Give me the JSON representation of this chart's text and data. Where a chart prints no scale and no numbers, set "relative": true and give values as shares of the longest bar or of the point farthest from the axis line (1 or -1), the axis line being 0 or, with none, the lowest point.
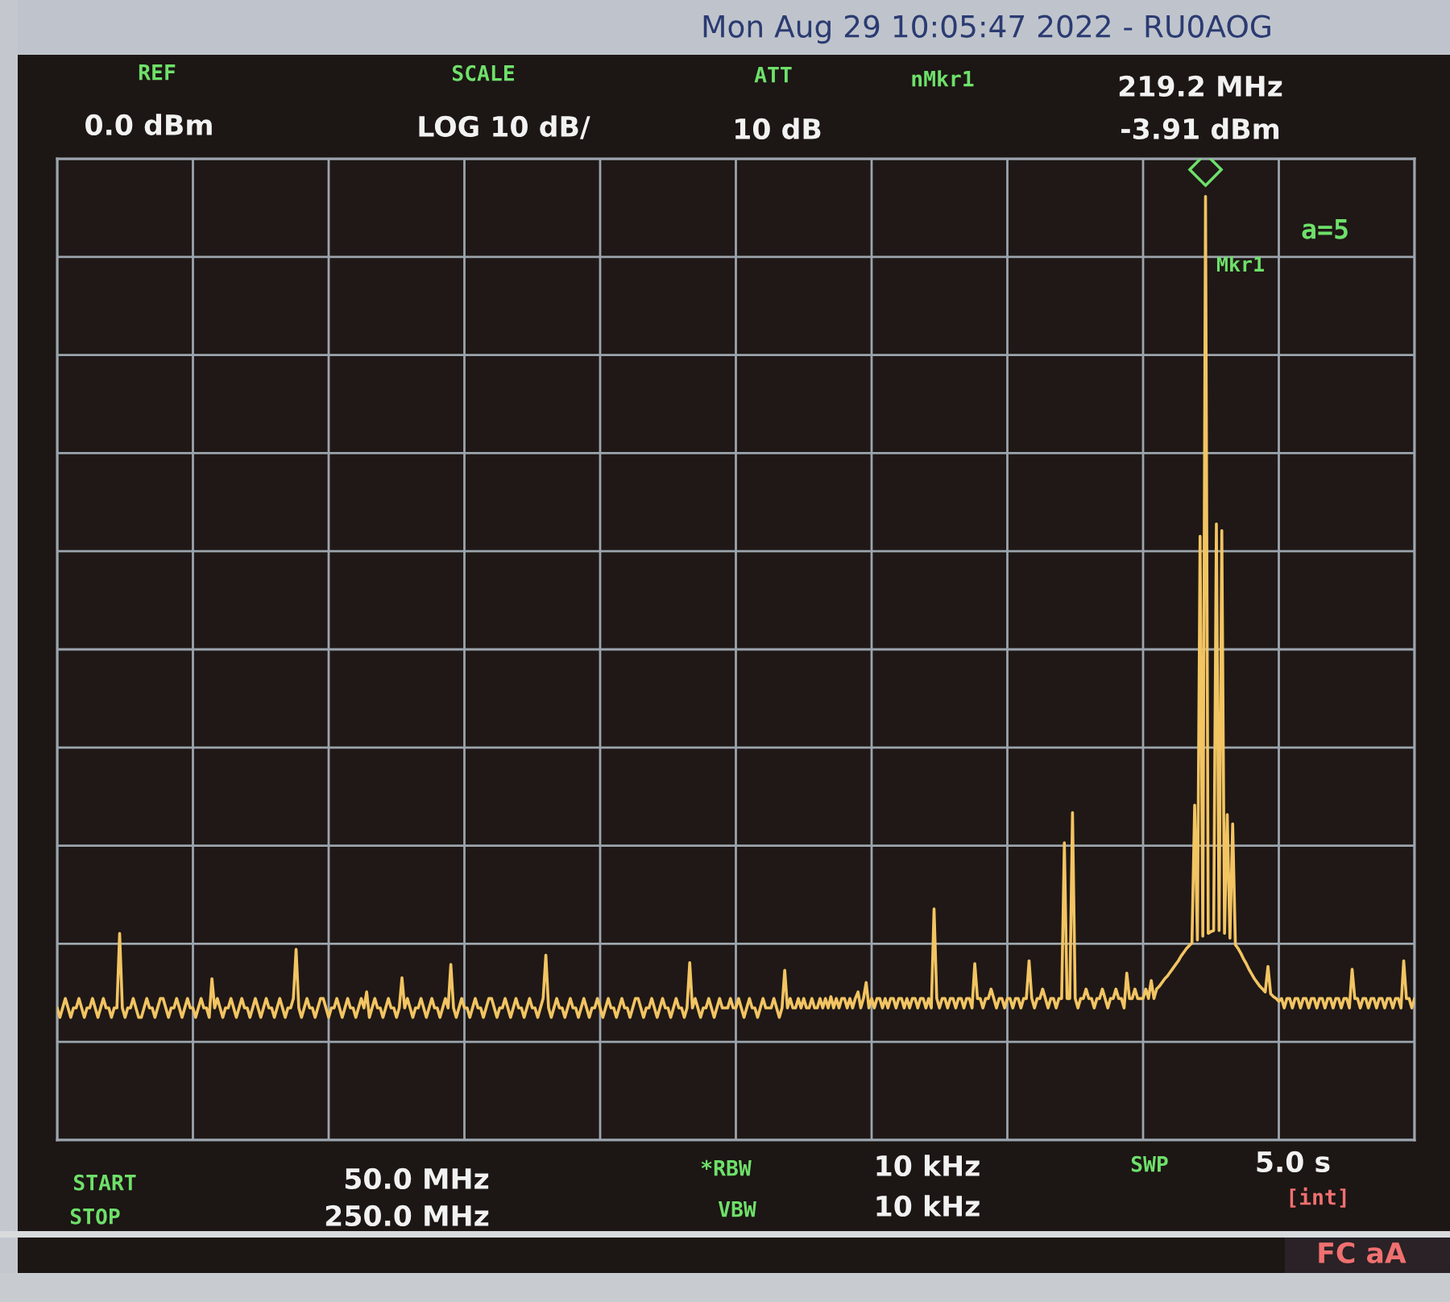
{
  "chart_data": {
    "type": "line",
    "title": "Mon Aug 29 10:05:47 2022 - RU0AOG",
    "relative": true,
    "categories": [
      null,
      null,
      null,
      null,
      null,
      null,
      null,
      null,
      null,
      null,
      null,
      null,
      null,
      null,
      null,
      null,
      null,
      null,
      null,
      null,
      null,
      null,
      null,
      null,
      null,
      null,
      null,
      null,
      null,
      null,
      null,
      null,
      null,
      null,
      null,
      null,
      null,
      null,
      null,
      null,
      null,
      null,
      null,
      null,
      null,
      null,
      null,
      null,
      null,
      null,
      null,
      null,
      null,
      null,
      null,
      null,
      null,
      null,
      null,
      null,
      null,
      null,
      null,
      null,
      null,
      null,
      null,
      null,
      null,
      null,
      null,
      null,
      null,
      null,
      null,
      null,
      null,
      null,
      null,
      null,
      null,
      null,
      null,
      null,
      null,
      null,
      null,
      null,
      null,
      null,
      null,
      null,
      null,
      null,
      null,
      null,
      null,
      null,
      null,
      null,
      null,
      null,
      null,
      null,
      null,
      null,
      null,
      null,
      null,
      null,
      null,
      null,
      null,
      null,
      null,
      null,
      null,
      null,
      null,
      null,
      null,
      null,
      null,
      null,
      null,
      null,
      null,
      null,
      null,
      null,
      null,
      null,
      null,
      null,
      null,
      null,
      null,
      null,
      null,
      null,
      null,
      null,
      null,
      null,
      null,
      null,
      null,
      null,
      null,
      null,
      null,
      null,
      null,
      null,
      null,
      null,
      null,
      null,
      null,
      null,
      null,
      null,
      null,
      null,
      null,
      null,
      null,
      null,
      null,
      null,
      null,
      null,
      null,
      null,
      null,
      null,
      null,
      null,
      null,
      null,
      null,
      null,
      null,
      null,
      null,
      null,
      null,
      null,
      null,
      null,
      null,
      null,
      null,
      null,
      null,
      null,
      null,
      null,
      null,
      null,
      null,
      null,
      null,
      null,
      null,
      null,
      null,
      null,
      null,
      null,
      null,
      null,
      null,
      null,
      null,
      null,
      null,
      null,
      null,
      null,
      null,
      null,
      null,
      null,
      null,
      null,
      null,
      null,
      null,
      null,
      null,
      null,
      null,
      null,
      null,
      null,
      null,
      null,
      null,
      null,
      null,
      null,
      null,
      null,
      null,
      null,
      null,
      null,
      null,
      null,
      null,
      null,
      null,
      null,
      null,
      null,
      null,
      null,
      null,
      null,
      null,
      null,
      null,
      null,
      null,
      null,
      null,
      null,
      null,
      null,
      null,
      null,
      null,
      null,
      null,
      null,
      null,
      null,
      null,
      null,
      null,
      null,
      null,
      null,
      null,
      null,
      null,
      null,
      null,
      null,
      null,
      null,
      null,
      null,
      null,
      null,
      null,
      null,
      null,
      null,
      null,
      null,
      null,
      null,
      null,
      null,
      null,
      null,
      null,
      null,
      null,
      null,
      null,
      null,
      null,
      null,
      null,
      null,
      null,
      null,
      null,
      null,
      null,
      null,
      null,
      null,
      null,
      null,
      null,
      null,
      null,
      null,
      null,
      null,
      null,
      null,
      null,
      null,
      null,
      null,
      null,
      null,
      null,
      null,
      null,
      null,
      null,
      null,
      null,
      null,
      null,
      null,
      null,
      null,
      null,
      null,
      null,
      null,
      null,
      null,
      null,
      null,
      null,
      null,
      null,
      null,
      null,
      null,
      null,
      null,
      null,
      null,
      null,
      null,
      null,
      null,
      null,
      null,
      null,
      null,
      null,
      null,
      null,
      null,
      null,
      null,
      null,
      null,
      null,
      null,
      null,
      null,
      null,
      null,
      null,
      null,
      null,
      null,
      null,
      null,
      null,
      null,
      null,
      null,
      null,
      null,
      null,
      null,
      null,
      null,
      null,
      null,
      null,
      null,
      null,
      null,
      null,
      null,
      null,
      null,
      null,
      null,
      null,
      null,
      null,
      null,
      null,
      null,
      null,
      null,
      null,
      null,
      null,
      null,
      null,
      null,
      null,
      null,
      null,
      null,
      null,
      null,
      null,
      null,
      null,
      null,
      null,
      null,
      null,
      null,
      null,
      null,
      null,
      null,
      null,
      null,
      null,
      null,
      null,
      null,
      null,
      null,
      null,
      null,
      null,
      null,
      null,
      null,
      null,
      null,
      null,
      null,
      null,
      null,
      null,
      null,
      null,
      null,
      null,
      null,
      null,
      null,
      null,
      null,
      null,
      null,
      null,
      null,
      null,
      null,
      null,
      null,
      null,
      null,
      null,
      null,
      null,
      null,
      null,
      null,
      null
    ],
    "series": [
      {
        "color": "#f2c462",
        "values": [
          0.14,
          0.13,
          0.14,
          0.15,
          0.14,
          0.13,
          0.14,
          0.14,
          0.15,
          0.14,
          0.13,
          0.14,
          0.14,
          0.15,
          0.14,
          0.13,
          0.14,
          0.15,
          0.14,
          0.14,
          0.13,
          0.14,
          0.14,
          0.219,
          0.14,
          0.13,
          0.14,
          0.14,
          0.15,
          0.14,
          0.13,
          0.13,
          0.14,
          0.15,
          0.14,
          0.14,
          0.13,
          0.14,
          0.15,
          0.15,
          0.14,
          0.13,
          0.14,
          0.14,
          0.15,
          0.14,
          0.13,
          0.14,
          0.15,
          0.14,
          0.14,
          0.13,
          0.14,
          0.15,
          0.14,
          0.14,
          0.13,
          0.171,
          0.14,
          0.15,
          0.14,
          0.13,
          0.14,
          0.14,
          0.15,
          0.14,
          0.13,
          0.14,
          0.15,
          0.14,
          0.14,
          0.13,
          0.14,
          0.15,
          0.14,
          0.13,
          0.14,
          0.15,
          0.14,
          0.14,
          0.13,
          0.14,
          0.15,
          0.14,
          0.13,
          0.14,
          0.14,
          0.15,
          0.202,
          0.14,
          0.13,
          0.14,
          0.15,
          0.14,
          0.14,
          0.13,
          0.14,
          0.15,
          0.15,
          0.14,
          0.13,
          0.14,
          0.14,
          0.15,
          0.14,
          0.13,
          0.14,
          0.15,
          0.14,
          0.14,
          0.13,
          0.14,
          0.15,
          0.14,
          0.157,
          0.13,
          0.14,
          0.15,
          0.14,
          0.14,
          0.13,
          0.14,
          0.15,
          0.14,
          0.14,
          0.13,
          0.14,
          0.172,
          0.14,
          0.15,
          0.14,
          0.13,
          0.14,
          0.14,
          0.15,
          0.14,
          0.13,
          0.14,
          0.15,
          0.14,
          0.14,
          0.13,
          0.14,
          0.15,
          0.14,
          0.186,
          0.14,
          0.13,
          0.14,
          0.15,
          0.14,
          0.14,
          0.13,
          0.14,
          0.15,
          0.14,
          0.14,
          0.13,
          0.14,
          0.15,
          0.15,
          0.14,
          0.13,
          0.14,
          0.14,
          0.15,
          0.14,
          0.13,
          0.14,
          0.15,
          0.14,
          0.14,
          0.13,
          0.14,
          0.15,
          0.14,
          0.14,
          0.13,
          0.14,
          0.15,
          0.196,
          0.14,
          0.13,
          0.14,
          0.15,
          0.14,
          0.14,
          0.13,
          0.14,
          0.15,
          0.14,
          0.14,
          0.13,
          0.14,
          0.15,
          0.14,
          0.13,
          0.14,
          0.14,
          0.15,
          0.14,
          0.13,
          0.14,
          0.15,
          0.14,
          0.14,
          0.13,
          0.14,
          0.15,
          0.14,
          0.14,
          0.13,
          0.14,
          0.15,
          0.15,
          0.14,
          0.13,
          0.14,
          0.14,
          0.15,
          0.14,
          0.13,
          0.14,
          0.15,
          0.14,
          0.14,
          0.13,
          0.14,
          0.15,
          0.14,
          0.14,
          0.13,
          0.14,
          0.188,
          0.14,
          0.15,
          0.14,
          0.13,
          0.14,
          0.14,
          0.15,
          0.14,
          0.13,
          0.14,
          0.15,
          0.14,
          0.14,
          0.14,
          0.15,
          0.14,
          0.14,
          0.15,
          0.14,
          0.13,
          0.14,
          0.15,
          0.14,
          0.14,
          0.13,
          0.14,
          0.15,
          0.14,
          0.14,
          0.14,
          0.15,
          0.14,
          0.13,
          0.14,
          0.18,
          0.14,
          0.15,
          0.14,
          0.14,
          0.15,
          0.14,
          0.15,
          0.14,
          0.14,
          0.15,
          0.14,
          0.14,
          0.15,
          0.14,
          0.15,
          0.14,
          0.152,
          0.14,
          0.15,
          0.14,
          0.15,
          0.15,
          0.14,
          0.15,
          0.14,
          0.15,
          0.157,
          0.14,
          0.15,
          0.167,
          0.14,
          0.15,
          0.14,
          0.15,
          0.15,
          0.14,
          0.15,
          0.14,
          0.15,
          0.15,
          0.14,
          0.15,
          0.15,
          0.14,
          0.15,
          0.14,
          0.15,
          0.15,
          0.14,
          0.15,
          0.15,
          0.14,
          0.15,
          0.14,
          0.245,
          0.15,
          0.14,
          0.15,
          0.15,
          0.14,
          0.15,
          0.15,
          0.14,
          0.15,
          0.15,
          0.14,
          0.15,
          0.15,
          0.14,
          0.187,
          0.15,
          0.15,
          0.14,
          0.15,
          0.15,
          0.16,
          0.15,
          0.14,
          0.15,
          0.15,
          0.14,
          0.15,
          0.15,
          0.14,
          0.15,
          0.15,
          0.14,
          0.15,
          0.15,
          0.19,
          0.15,
          0.14,
          0.15,
          0.15,
          0.16,
          0.15,
          0.14,
          0.15,
          0.15,
          0.14,
          0.15,
          0.15,
          0.315,
          0.15,
          0.15,
          0.347,
          0.15,
          0.14,
          0.15,
          0.15,
          0.16,
          0.15,
          0.15,
          0.14,
          0.15,
          0.15,
          0.16,
          0.15,
          0.14,
          0.15,
          0.15,
          0.16,
          0.15,
          0.15,
          0.14,
          0.177,
          0.15,
          0.15,
          0.16,
          0.15,
          0.15,
          0.15,
          0.16,
          0.15,
          0.169,
          0.15,
          0.16,
          0.163,
          0.167,
          0.171,
          0.174,
          0.178,
          0.182,
          0.186,
          0.19,
          0.195,
          0.199,
          0.203,
          0.206,
          0.209,
          0.355,
          0.212,
          0.64,
          0.216,
          1,
          0.219,
          0.221,
          0.222,
          0.653,
          0.222,
          0.646,
          0.219,
          0.345,
          0.214,
          0.335,
          0.207,
          0.203,
          0.198,
          0.192,
          0.187,
          0.181,
          0.176,
          0.171,
          0.167,
          0.163,
          0.16,
          0.157,
          0.184,
          0.155,
          0.152,
          0.15,
          0.147,
          0.15,
          0.14,
          0.15,
          0.15,
          0.14,
          0.15,
          0.15,
          0.14,
          0.15,
          0.15,
          0.14,
          0.15,
          0.15,
          0.14,
          0.15,
          0.15,
          0.14,
          0.15,
          0.15,
          0.14,
          0.15,
          0.15,
          0.14,
          0.15,
          0.15,
          0.14,
          0.181,
          0.15,
          0.15,
          0.14,
          0.15,
          0.15,
          0.14,
          0.15,
          0.15,
          0.14,
          0.15,
          0.15,
          0.14,
          0.15,
          0.15,
          0.14,
          0.15,
          0.15,
          0.14,
          0.19,
          0.15,
          0.15,
          0.14,
          0.15
        ]
      }
    ],
    "grid": true,
    "annotations": [
      "REF",
      "0.0 dBm",
      "SCALE",
      "LOG 10 dB/",
      "ATT",
      "10 dB",
      "nMkr1",
      "219.2 MHz",
      "-3.91 dBm",
      "Mkr1",
      "a=5",
      "START",
      "50.0 MHz",
      "STOP",
      "250.0 MHz",
      "*RBW",
      "10 kHz",
      "VBW",
      "10 kHz",
      "SWP",
      "5.0 s",
      "[int]",
      "FC aA"
    ]
  }
}
